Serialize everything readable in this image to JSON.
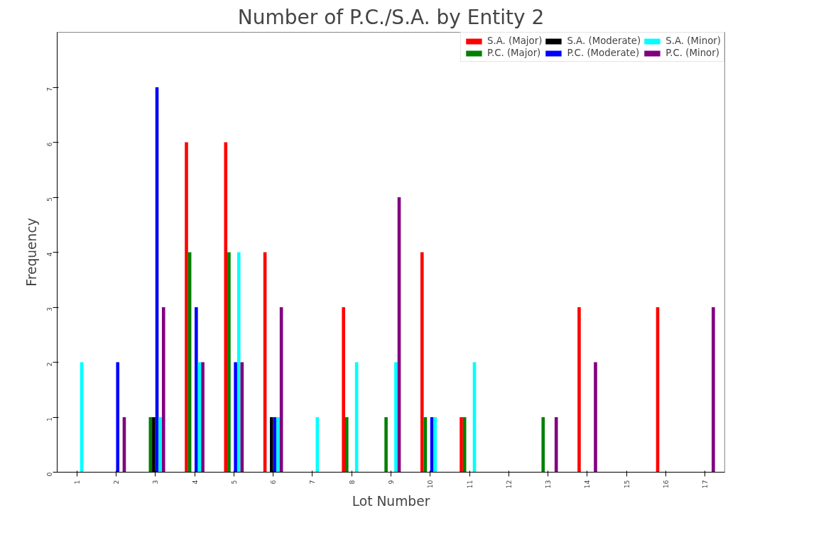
{
  "chart_data": {
    "type": "bar",
    "title": "Number of P.C./S.A. by Entity 2",
    "xlabel": "Lot Number",
    "ylabel": "Frequency",
    "categories": [
      "1",
      "2",
      "3",
      "4",
      "5",
      "6",
      "7",
      "8",
      "9",
      "10",
      "11",
      "12",
      "13",
      "14",
      "15",
      "16",
      "17"
    ],
    "series": [
      {
        "name": "S.A. (Major)",
        "color": "#ff0000",
        "values": [
          0,
          0,
          0,
          6,
          6,
          4,
          0,
          3,
          0,
          4,
          1,
          0,
          0,
          3,
          0,
          3,
          0
        ]
      },
      {
        "name": "P.C. (Major)",
        "color": "#008000",
        "values": [
          0,
          0,
          1,
          4,
          4,
          0,
          0,
          1,
          1,
          1,
          1,
          0,
          1,
          0,
          0,
          0,
          0
        ]
      },
      {
        "name": "S.A. (Moderate)",
        "color": "#000000",
        "values": [
          0,
          0,
          1,
          0,
          0,
          1,
          0,
          0,
          0,
          0,
          0,
          0,
          0,
          0,
          0,
          0,
          0
        ]
      },
      {
        "name": "P.C. (Moderate)",
        "color": "#0000ff",
        "values": [
          0,
          2,
          7,
          3,
          2,
          1,
          0,
          0,
          0,
          1,
          0,
          0,
          0,
          0,
          0,
          0,
          0
        ]
      },
      {
        "name": "S.A. (Minor)",
        "color": "#00ffff",
        "values": [
          2,
          0,
          1,
          2,
          4,
          1,
          1,
          2,
          2,
          1,
          2,
          0,
          0,
          0,
          0,
          0,
          0
        ]
      },
      {
        "name": "P.C. (Minor)",
        "color": "#800080",
        "values": [
          0,
          1,
          3,
          2,
          2,
          3,
          0,
          0,
          5,
          0,
          0,
          0,
          1,
          2,
          0,
          0,
          3
        ]
      }
    ],
    "ylim": [
      0,
      8
    ],
    "yticks": [
      0,
      1,
      2,
      3,
      4,
      5,
      6,
      7
    ],
    "grid": false,
    "legend": "top right"
  }
}
